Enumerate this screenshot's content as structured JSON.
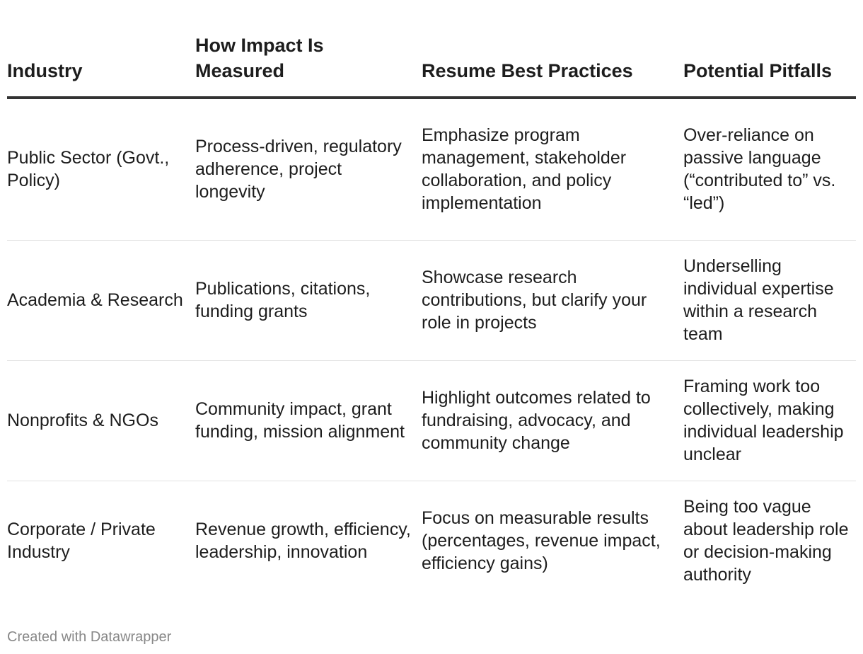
{
  "table": {
    "headers": [
      "Industry",
      "How Impact Is Measured",
      "Resume Best Practices",
      "Potential Pitfalls"
    ],
    "rows": [
      [
        "Public Sector (Govt., Policy)",
        "Process-driven, regulatory adherence, project longevity",
        "Emphasize program management, stakeholder collaboration, and policy implementation",
        "Over-reliance on passive language (“contributed to” vs. “led”)"
      ],
      [
        "Academia & Research",
        "Publications, citations, funding grants",
        "Showcase research contributions, but clarify your role in projects",
        "Underselling individual expertise within a research team"
      ],
      [
        "Nonprofits & NGOs",
        "Community impact, grant funding, mission alignment",
        "Highlight outcomes related to fundraising, advocacy, and community change",
        "Framing work too collectively, making individual leadership unclear"
      ],
      [
        "Corporate / Private Industry",
        "Revenue growth, efficiency, leadership, innovation",
        "Focus on measurable results (percentages, revenue impact, efficiency gains)",
        "Being too vague about leadership role or decision-making authority"
      ]
    ]
  },
  "footer": {
    "credit": "Created with Datawrapper"
  },
  "colors": {
    "text": "#1d1d1d",
    "header_rule": "#333333",
    "row_divider": "#e2e2e2",
    "credit": "#888888"
  }
}
